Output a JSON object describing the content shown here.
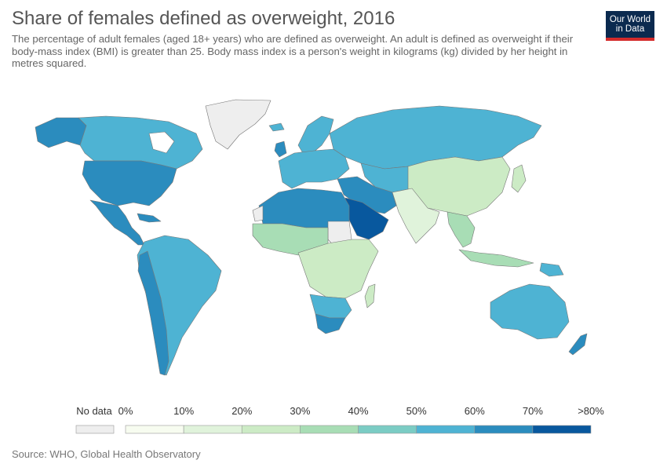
{
  "header": {
    "title": "Share of females defined as overweight, 2016",
    "subtitle": "The percentage of adult females (aged 18+ years) who are defined as overweight. An adult is defined as overweight if their body-mass index (BMI) is greater than 25. Body mass index is a person's weight in kilograms (kg) divided by her height in metres squared.",
    "logo_line1": "Our World",
    "logo_line2": "in Data"
  },
  "legend": {
    "no_data_label": "No data",
    "no_data_color": "#eeeeee",
    "ticks": [
      "0%",
      "10%",
      "20%",
      "30%",
      "40%",
      "50%",
      "60%",
      "70%",
      ">80%"
    ],
    "bin_colors": [
      "#f7fcf0",
      "#e0f3db",
      "#ccebc5",
      "#a8ddb5",
      "#7bccc4",
      "#4eb3d3",
      "#2b8cbe",
      "#08589e"
    ]
  },
  "map_colors": {
    "land_none": "#eeeeee",
    "north_america": "#2b8cbe",
    "canada": "#4eb3d3",
    "south_america": "#4eb3d3",
    "europe": "#4eb3d3",
    "russia": "#4eb3d3",
    "north_africa": "#2b8cbe",
    "west_africa": "#a8ddb5",
    "central_africa": "#ccebc5",
    "southern_africa": "#4eb3d3",
    "south_africa": "#2b8cbe",
    "middle_east": "#2b8cbe",
    "arabia": "#08589e",
    "central_asia": "#4eb3d3",
    "china": "#ccebc5",
    "india": "#e0f3db",
    "southeast_asia": "#a8ddb5",
    "australia": "#4eb3d3",
    "greenland": "#eeeeee"
  },
  "footer": {
    "source": "Source: WHO, Global Health Observatory"
  }
}
